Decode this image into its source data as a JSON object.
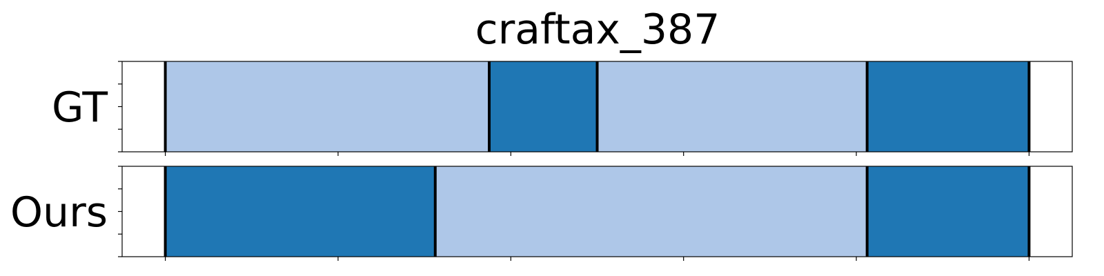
{
  "chart_data": {
    "type": "segmentation",
    "title": "craftax_387",
    "colors": {
      "light": "#aec7e8",
      "dark": "#1f77b4",
      "boundary": "#000000"
    },
    "x_range": [
      -4,
      84
    ],
    "rows": [
      {
        "label": "GT",
        "segments": [
          {
            "start": 0,
            "end": 30,
            "color": "light"
          },
          {
            "start": 30,
            "end": 40,
            "color": "dark"
          },
          {
            "start": 40,
            "end": 65,
            "color": "light"
          },
          {
            "start": 65,
            "end": 80,
            "color": "dark"
          }
        ]
      },
      {
        "label": "Ours",
        "segments": [
          {
            "start": 0,
            "end": 25,
            "color": "dark"
          },
          {
            "start": 25,
            "end": 65,
            "color": "light"
          },
          {
            "start": 65,
            "end": 80,
            "color": "dark"
          }
        ]
      }
    ],
    "x_ticks": [
      0,
      16,
      32,
      48,
      64,
      80
    ],
    "y_ticks": 5,
    "grid": false
  }
}
